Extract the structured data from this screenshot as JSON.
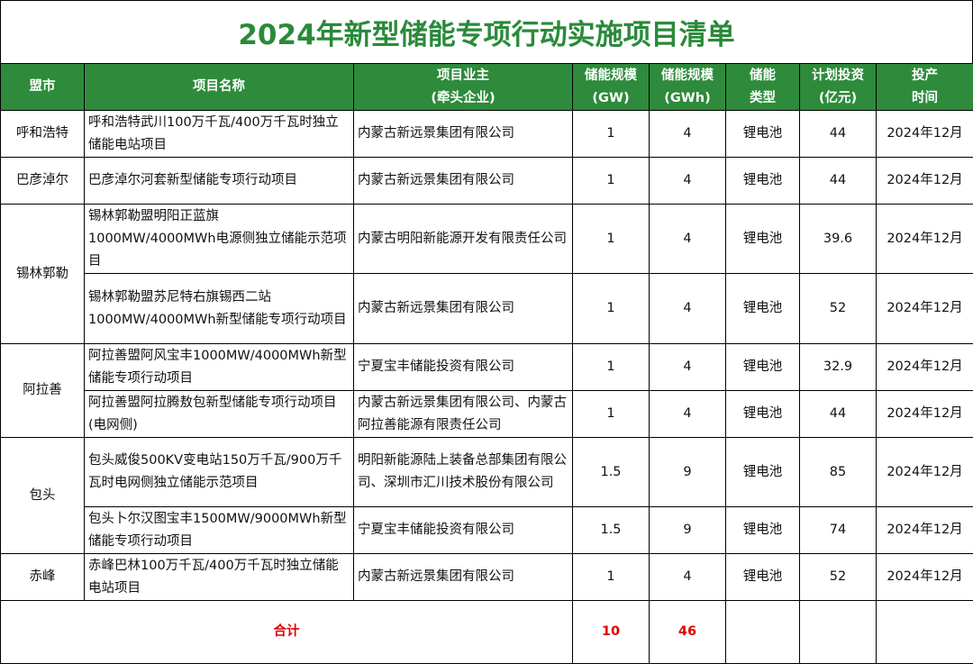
{
  "title": "2024年新型储能专项行动实施项目清单",
  "colors": {
    "header_bg": "#2e8b3b",
    "title": "#2a8a3a",
    "total": "#e00000"
  },
  "headers": [
    "盟市",
    "项目名称",
    "项目业主\n(牵头企业)",
    "储能规模\n(GW)",
    "储能规模\n(GWh)",
    "储能\n类型",
    "计划投资\n(亿元)",
    "投产\n时间"
  ],
  "groups": [
    {
      "city": "呼和浩特",
      "rows": [
        {
          "name": "呼和浩特武川100万千瓦/400万千瓦时独立储能电站项目",
          "owner": "内蒙古新远景集团有限公司",
          "gw": "1",
          "gwh": "4",
          "type": "锂电池",
          "invest": "44",
          "date": "2024年12月"
        }
      ]
    },
    {
      "city": "巴彦淖尔",
      "rows": [
        {
          "name": "巴彦淖尔河套新型储能专项行动项目",
          "owner": "内蒙古新远景集团有限公司",
          "gw": "1",
          "gwh": "4",
          "type": "锂电池",
          "invest": "44",
          "date": "2024年12月"
        }
      ]
    },
    {
      "city": "锡林郭勒",
      "rows": [
        {
          "name": "锡林郭勒盟明阳正蓝旗\n1000MW/4000MWh电源侧独立储能示范项 目",
          "owner": "内蒙古明阳新能源开发有限责任公司",
          "gw": "1",
          "gwh": "4",
          "type": "锂电池",
          "invest": "39.6",
          "date": "2024年12月"
        },
        {
          "name": "锡林郭勒盟苏尼特右旗锡西二站\n1000MW/4000MWh新型储能专项行动项目",
          "owner": "内蒙古新远景集团有限公司",
          "gw": "1",
          "gwh": "4",
          "type": "锂电池",
          "invest": "52",
          "date": "2024年12月"
        }
      ]
    },
    {
      "city": "阿拉善",
      "rows": [
        {
          "name": "阿拉善盟阿风宝丰1000MW/4000MWh新型储能专项行动项目",
          "owner": "宁夏宝丰储能投资有限公司",
          "gw": "1",
          "gwh": "4",
          "type": "锂电池",
          "invest": "32.9",
          "date": "2024年12月"
        },
        {
          "name": "阿拉善盟阿拉腾敖包新型储能专项行动项目(电网侧)",
          "owner": "内蒙古新远景集团有限公司、内蒙古阿拉善能源有限责任公司",
          "gw": "1",
          "gwh": "4",
          "type": "锂电池",
          "invest": "44",
          "date": "2024年12月"
        }
      ]
    },
    {
      "city": "包头",
      "rows": [
        {
          "name": "包头威俊500KV变电站150万千瓦/900万千瓦时电网侧独立储能示范项目",
          "owner": "明阳新能源陆上装备总部集团有限公司、深圳市汇川技术股份有限公司",
          "gw": "1.5",
          "gwh": "9",
          "type": "锂电池",
          "invest": "85",
          "date": "2024年12月"
        },
        {
          "name": "包头卜尔汉图宝丰1500MW/9000MWh新型储能专项行动项目",
          "owner": "宁夏宝丰储能投资有限公司",
          "gw": "1.5",
          "gwh": "9",
          "type": "锂电池",
          "invest": "74",
          "date": "2024年12月"
        }
      ]
    },
    {
      "city": "赤峰",
      "rows": [
        {
          "name": "赤峰巴林100万千瓦/400万千瓦时独立储能电站项目",
          "owner": "内蒙古新远景集团有限公司",
          "gw": "1",
          "gwh": "4",
          "type": "锂电池",
          "invest": "52",
          "date": "2024年12月"
        }
      ]
    }
  ],
  "total": {
    "label": "合计",
    "gw": "10",
    "gwh": "46"
  }
}
